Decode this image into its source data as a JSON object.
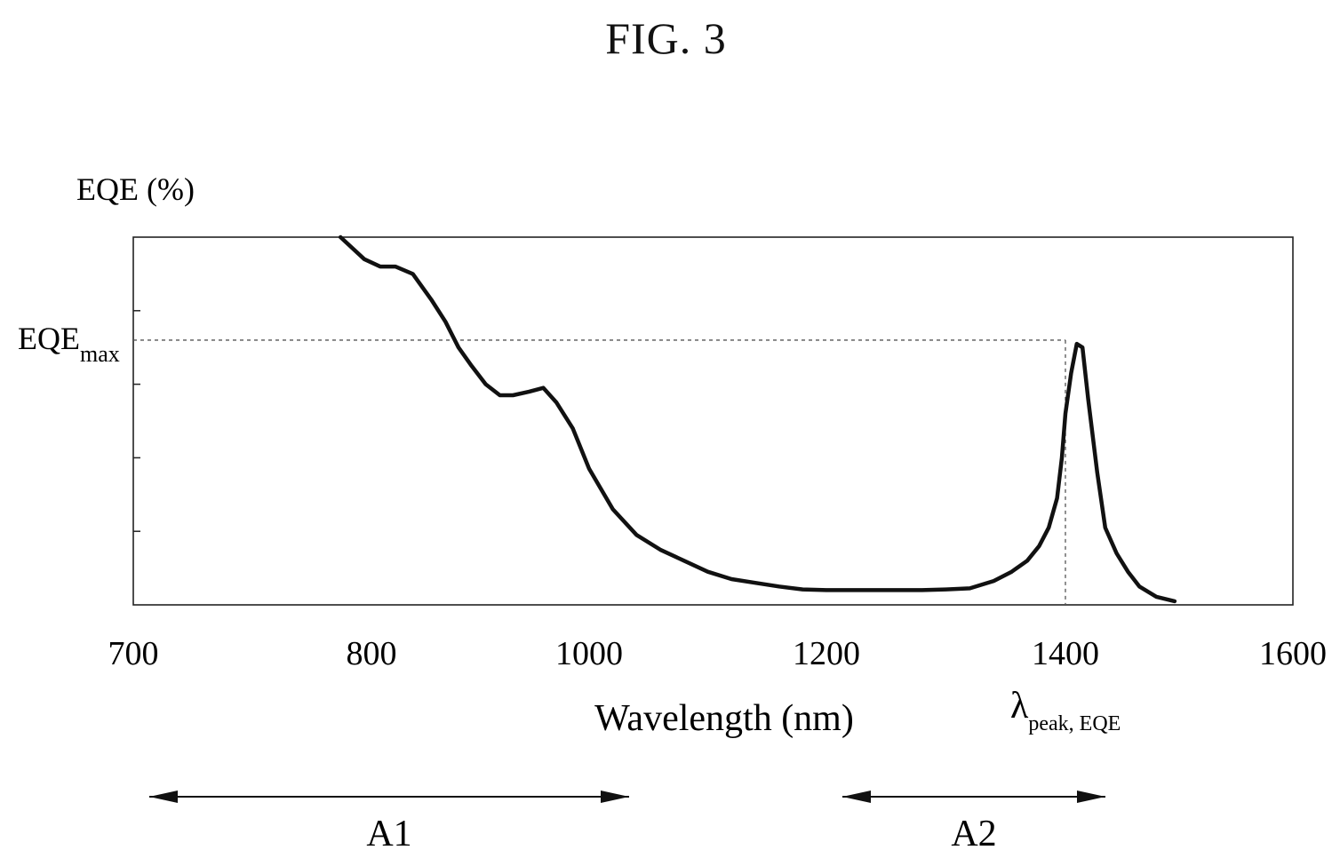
{
  "figure_title": "FIG. 3",
  "chart_data": {
    "type": "line",
    "y_axis_title": "EQE (%)",
    "xlabel": "Wavelength (nm)",
    "xlim": [
      700,
      1600
    ],
    "ylim": [
      0,
      100
    ],
    "x_tick_labels": [
      {
        "value": 700,
        "label": "700"
      },
      {
        "value": 800,
        "label": "800"
      },
      {
        "value": 1000,
        "label": "1000"
      },
      {
        "value": 1200,
        "label": "1200"
      },
      {
        "value": 1400,
        "label": "1400"
      },
      {
        "value": 1600,
        "label": "1600"
      }
    ],
    "y_minor_ticks": [
      20,
      40,
      60,
      80
    ],
    "eqe_max": {
      "label_main": "EQE",
      "label_sub": "max",
      "value": 72
    },
    "peak": {
      "x": 1400,
      "label_main": "λ",
      "label_sub": "peak, EQE"
    },
    "series": [
      {
        "x": [
          787,
          797,
          808,
          822,
          838,
          855,
          868,
          880,
          892,
          905,
          918,
          930,
          945,
          958,
          970,
          985,
          1000,
          1020,
          1040,
          1060,
          1080,
          1100,
          1120,
          1140,
          1160,
          1180,
          1200,
          1220,
          1240,
          1260,
          1280,
          1300,
          1320,
          1340,
          1355,
          1368,
          1378,
          1386,
          1393,
          1397,
          1400,
          1405,
          1410,
          1415,
          1420,
          1428,
          1435,
          1445,
          1455,
          1465,
          1480,
          1496
        ],
        "y": [
          100,
          94,
          92,
          92,
          90,
          83,
          77,
          70,
          65,
          60,
          57,
          57,
          58,
          59,
          55,
          48,
          37,
          26,
          19,
          15,
          12,
          9,
          7,
          6,
          5,
          4.2,
          4,
          4,
          4,
          4,
          4,
          4.2,
          4.5,
          6.5,
          9,
          12,
          16,
          21,
          29,
          40,
          52,
          63,
          71,
          70,
          56,
          36,
          21,
          14,
          9,
          5,
          2.2,
          1
        ]
      }
    ],
    "regions": [
      {
        "label": "A1",
        "from": 700,
        "to": 1000
      },
      {
        "label": "A2",
        "from": 1200,
        "to": 1400
      }
    ],
    "grid": false,
    "line_color": "#111111"
  }
}
